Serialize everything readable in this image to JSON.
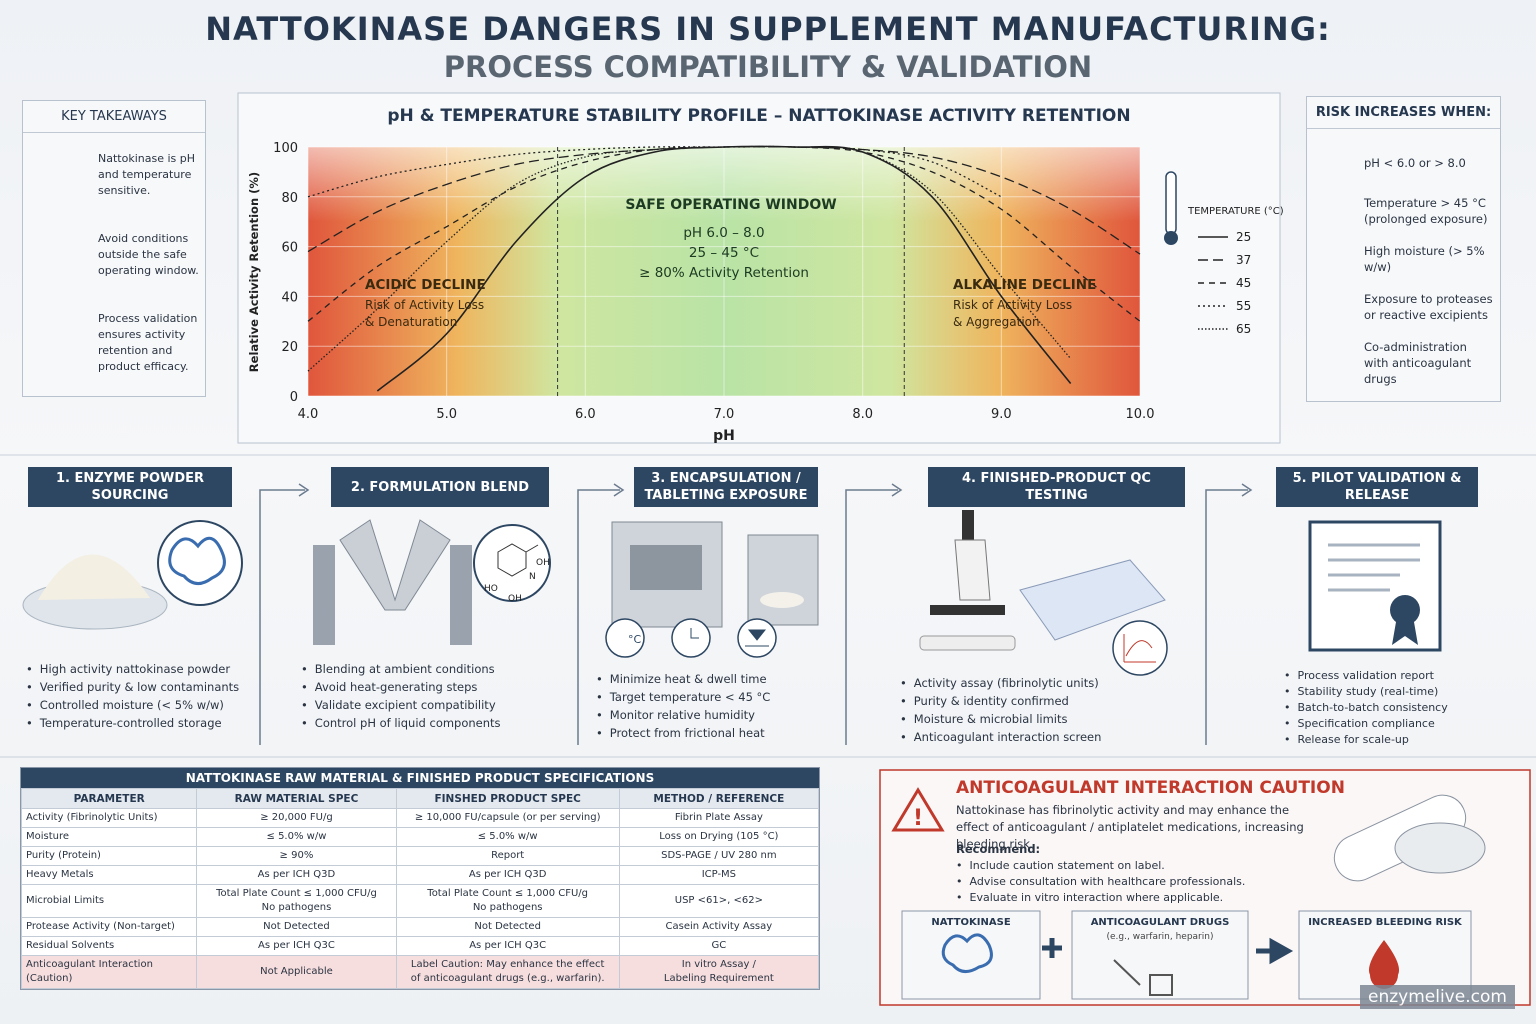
{
  "header": {
    "title": "NATTOKINASE DANGERS IN SUPPLEMENT MANUFACTURING:",
    "subtitle": "PROCESS COMPATIBILITY & VALIDATION"
  },
  "key_takeaways": {
    "title": "KEY TAKEAWAYS",
    "items": [
      "Nattokinase is pH and temperature sensitive.",
      "Avoid conditions outside the safe operating window.",
      "Process validation ensures activity retention and product efficacy."
    ]
  },
  "chart_data": {
    "type": "line",
    "title": "pH & TEMPERATURE STABILITY PROFILE – NATTOKINASE ACTIVITY RETENTION",
    "x_label": "pH",
    "y_label": "Relative Activity Retention (%)",
    "x": [
      4,
      4.5,
      5,
      5.5,
      6,
      6.5,
      7,
      7.5,
      8,
      8.5,
      9,
      9.5,
      10
    ],
    "xlim": [
      4,
      10
    ],
    "ylim": [
      0,
      100
    ],
    "xticks": [
      {
        "value": 4,
        "label": "4.0"
      },
      {
        "value": 5,
        "label": "5.0"
      },
      {
        "value": 6,
        "label": "6.0"
      },
      {
        "value": 7,
        "label": "7.0"
      },
      {
        "value": 8,
        "label": "8.0"
      },
      {
        "value": 9,
        "label": "9.0"
      },
      {
        "value": 10,
        "label": "10.0"
      }
    ],
    "yticks": [
      0,
      20,
      40,
      60,
      80,
      100
    ],
    "grid": true,
    "window_x": [
      5.8,
      8.3
    ],
    "legend_title": "TEMPERATURE (°C)",
    "series": [
      {
        "name": "25",
        "color": "#222222",
        "dash": "solid",
        "values": [
          null,
          2,
          25,
          62,
          88,
          98,
          100,
          100,
          98,
          80,
          40,
          5,
          null
        ]
      },
      {
        "name": "37",
        "color": "#222222",
        "dash": "long",
        "values": [
          58,
          74,
          85,
          93,
          97,
          99,
          100,
          100,
          99,
          96,
          88,
          75,
          57
        ]
      },
      {
        "name": "45",
        "color": "#222222",
        "dash": "medium",
        "values": [
          30,
          52,
          68,
          84,
          94,
          99,
          100,
          100,
          98,
          90,
          75,
          52,
          30
        ]
      },
      {
        "name": "55",
        "color": "#222222",
        "dash": "dotted",
        "values": [
          80,
          88,
          93,
          97,
          99,
          100,
          100,
          100,
          99,
          94,
          80,
          null,
          null
        ]
      },
      {
        "name": "65",
        "color": "#222222",
        "dash": "fine",
        "values": [
          10,
          35,
          62,
          85,
          96,
          99,
          100,
          100,
          98,
          82,
          48,
          15,
          null
        ]
      }
    ],
    "annotations": {
      "window_title": "SAFE OPERATING WINDOW",
      "window_lines": [
        "pH 6.0 – 8.0",
        "25 – 45 °C",
        "≥ 80% Activity Retention"
      ],
      "acid_title": "ACIDIC DECLINE",
      "acid_lines": [
        "Risk of Activity Loss",
        "& Denaturation"
      ],
      "alk_title": "ALKALINE DECLINE",
      "alk_lines": [
        "Risk of Activity Loss",
        "& Aggregation"
      ]
    }
  },
  "risks": {
    "title": "RISK INCREASES WHEN:",
    "items": [
      "pH < 6.0 or > 8.0",
      "Temperature > 45 °C (prolonged exposure)",
      "High moisture (> 5% w/w)",
      "Exposure to proteases or reactive excipients",
      "Co-administration with anticoagulant drugs"
    ]
  },
  "steps": [
    {
      "title": "1. ENZYME POWDER SOURCING",
      "bullets": [
        "High activity nattokinase powder",
        "Verified purity & low contaminants",
        "Controlled moisture (< 5% w/w)",
        "Temperature-controlled storage"
      ]
    },
    {
      "title": "2. FORMULATION BLEND",
      "bullets": [
        "Blending at ambient conditions",
        "Avoid heat-generating steps",
        "Validate excipient compatibility",
        "Control pH of liquid components"
      ],
      "molecule_labels": [
        "OH",
        "N",
        "HO",
        "OH"
      ]
    },
    {
      "title": "3. ENCAPSULATION / TABLETING EXPOSURE",
      "bullets": [
        "Minimize heat & dwell time",
        "Target temperature < 45 °C",
        "Monitor relative humidity",
        "Protect from frictional heat"
      ],
      "icon_label": "°C"
    },
    {
      "title": "4. FINISHED-PRODUCT QC TESTING",
      "bullets": [
        "Activity assay (fibrinolytic units)",
        "Purity & identity confirmed",
        "Moisture & microbial limits",
        "Anticoagulant interaction screen"
      ]
    },
    {
      "title": "5. PILOT VALIDATION & RELEASE",
      "bullets": [
        "Process validation report",
        "Stability study (real-time)",
        "Batch-to-batch consistency",
        "Specification compliance",
        "Release for scale-up"
      ]
    }
  ],
  "table": {
    "title": "NATTOKINASE RAW MATERIAL & FINISHED PRODUCT SPECIFICATIONS",
    "columns": [
      "PARAMETER",
      "RAW MATERIAL SPEC",
      "FINSHED PRODUCT SPEC",
      "METHOD / REFERENCE"
    ],
    "rows": [
      [
        "Activity (Fibrinolytic Units)",
        "≥ 20,000 FU/g",
        "≥ 10,000 FU/capsule (or per serving)",
        "Fibrin Plate Assay"
      ],
      [
        "Moisture",
        "≤ 5.0% w/w",
        "≤ 5.0% w/w",
        "Loss on Drying (105 °C)"
      ],
      [
        "Purity (Protein)",
        "≥ 90%",
        "Report",
        "SDS-PAGE / UV 280 nm"
      ],
      [
        "Heavy Metals",
        "As per ICH Q3D",
        "As per ICH Q3D",
        "ICP-MS"
      ],
      [
        "Microbial Limits",
        "Total Plate Count ≤ 1,000 CFU/g\nNo pathogens",
        "Total Plate Count ≤ 1,000 CFU/g\nNo pathogens",
        "USP <61>, <62>"
      ],
      [
        "Protease Activity (Non-target)",
        "Not Detected",
        "Not Detected",
        "Casein Activity Assay"
      ],
      [
        "Residual Solvents",
        "As per ICH Q3C",
        "As per ICH Q3C",
        "GC"
      ],
      [
        "Anticoagulant Interaction (Caution)",
        "Not Applicable",
        "Label Caution: May enhance the effect\nof anticoagulant drugs (e.g., warfarin).",
        "In vitro Assay /\nLabeling Requirement"
      ]
    ]
  },
  "caution": {
    "title": "ANTICOAGULANT INTERACTION CAUTION",
    "text": "Nattokinase has fibrinolytic activity and may enhance the effect of anticoagulant / antiplatelet medications, increasing bleeding risk.",
    "recommend_title": "Recommend:",
    "recommend": [
      "Include caution statement on label.",
      "Advise consultation with healthcare professionals.",
      "Evaluate in vitro interaction where applicable."
    ],
    "flow": {
      "a": "NATTOKINASE",
      "b": "ANTICOAGULANT DRUGS",
      "b_sub": "(e.g., warfarin, heparin)",
      "c": "INCREASED BLEEDING RISK"
    }
  },
  "watermark": "enzymelive.com"
}
